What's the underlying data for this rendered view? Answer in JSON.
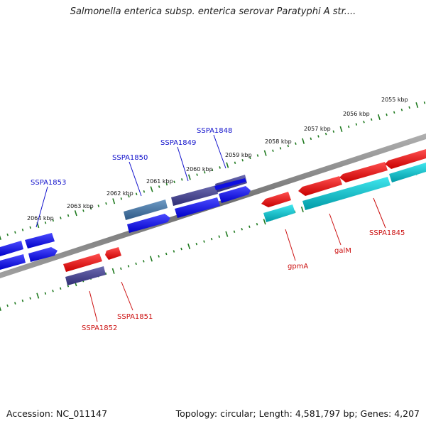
{
  "title": "Salmonella enterica subsp. enterica serovar Paratyphi A str....",
  "footer": {
    "accession": "Accession: NC_011147",
    "stats": "Topology: circular; Length: 4,581,797 bp; Genes: 4,207"
  },
  "colors": {
    "forward_gene": "#1010e0",
    "forward_gene_alt": "#3e3d8c",
    "forward_gene_light": "#3f6d9c",
    "reverse_gene": "#e50f0f",
    "reverse_gene_alt": "#00b3bf",
    "reverse_gene_dark": "#4a4585",
    "backbone": "#808080",
    "tick": "#1f7a1f",
    "forward_label": "#1212cc",
    "reverse_label": "#cc1111"
  },
  "scale_labels": [
    "2055 kbp",
    "2056 kbp",
    "2057 kbp",
    "2058 kbp",
    "2059 kbp",
    "2060 kbp",
    "2061 kbp",
    "2062 kbp",
    "2063 kbp",
    "2064 kbp"
  ],
  "forward_gene_labels": [
    "SSPA1848",
    "SSPA1849",
    "SSPA1850",
    "SSPA1853"
  ],
  "reverse_gene_labels": [
    "SSPA1845",
    "galM",
    "gpmA",
    "SSPA1851",
    "SSPA1852"
  ]
}
